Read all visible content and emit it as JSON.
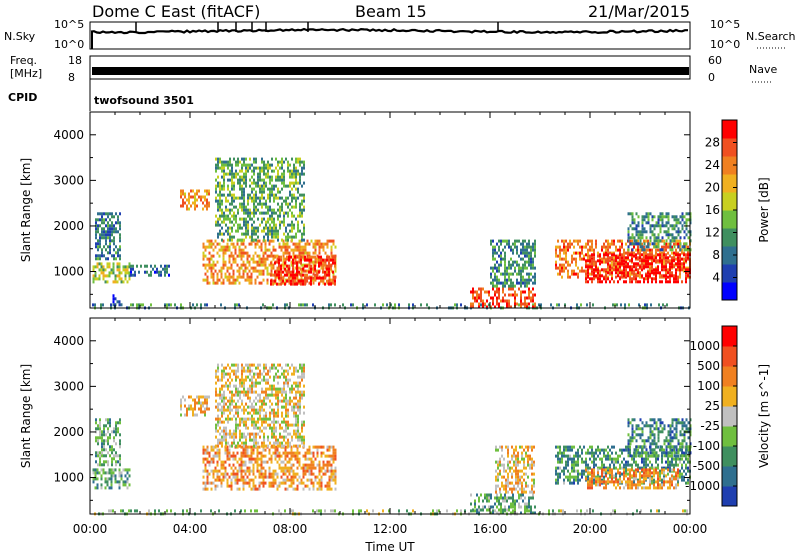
{
  "header": {
    "station": "Dome C East (fitACF)",
    "beam": "Beam 15",
    "date": "21/Mar/2015"
  },
  "nsky_panel": {
    "left_label": "N.Sky",
    "right_label": "N.Search",
    "left_tick_top": "10^5",
    "left_tick_bottom": "10^0",
    "right_tick_top": "10^5",
    "right_tick_bottom": "10^0"
  },
  "freq_panel": {
    "left_label_top": "Freq.",
    "left_label_bottom": "[MHz]",
    "left_tick_top": "18",
    "left_tick_bottom": "8",
    "right_label": "Nave",
    "right_tick_top": "60",
    "right_tick_bottom": "0",
    "cpid_label": "CPID",
    "cpid_value": "twofsound 3501"
  },
  "chart_data": [
    {
      "type": "heatmap",
      "name": "power",
      "xlabel": "",
      "ylabel": "Slant Range [km]",
      "x_ticks": [
        "00:00",
        "04:00",
        "08:00",
        "12:00",
        "16:00",
        "20:00",
        "00:00"
      ],
      "xlim_hours": [
        0,
        24
      ],
      "ylim_km": [
        200,
        4500
      ],
      "y_ticks": [
        1000,
        2000,
        3000,
        4000
      ],
      "colorbar": {
        "label": "Power [dB]",
        "range": [
          0,
          32
        ],
        "ticks": [
          4,
          8,
          12,
          16,
          20,
          24,
          28
        ],
        "colors": [
          "#0000ff",
          "#1f3fb0",
          "#2f6f8f",
          "#3f8f5f",
          "#6fbf3f",
          "#c8d020",
          "#f0b020",
          "#f08020",
          "#f05020",
          "#ff0000"
        ]
      },
      "regions": [
        {
          "t": [
            0.1,
            1.6
          ],
          "r": [
            750,
            1200
          ],
          "level": 0.5
        },
        {
          "t": [
            0.2,
            1.2
          ],
          "r": [
            1300,
            2300
          ],
          "level": 0.25
        },
        {
          "t": [
            0.9,
            1.3
          ],
          "r": [
            300,
            500
          ],
          "level": 0.15
        },
        {
          "t": [
            1.6,
            3.2
          ],
          "r": [
            950,
            1150
          ],
          "level": 0.2
        },
        {
          "t": [
            3.6,
            4.8
          ],
          "r": [
            2350,
            2800
          ],
          "level": 0.75
        },
        {
          "t": [
            4.5,
            9.8
          ],
          "r": [
            750,
            1700
          ],
          "level": 0.75
        },
        {
          "t": [
            5.0,
            8.6
          ],
          "r": [
            1700,
            3500
          ],
          "level": 0.4
        },
        {
          "t": [
            7.2,
            9.8
          ],
          "r": [
            750,
            1350
          ],
          "level": 0.95
        },
        {
          "t": [
            0.0,
            24.0
          ],
          "r": [
            200,
            300
          ],
          "level": 0.3
        },
        {
          "t": [
            15.2,
            17.8
          ],
          "r": [
            250,
            650
          ],
          "level": 0.9
        },
        {
          "t": [
            16.0,
            17.8
          ],
          "r": [
            700,
            1700
          ],
          "level": 0.3
        },
        {
          "t": [
            18.6,
            24.0
          ],
          "r": [
            900,
            1700
          ],
          "level": 0.8
        },
        {
          "t": [
            19.8,
            24.0
          ],
          "r": [
            800,
            1400
          ],
          "level": 1.0
        },
        {
          "t": [
            21.5,
            24.0
          ],
          "r": [
            1500,
            2300
          ],
          "level": 0.3
        }
      ]
    },
    {
      "type": "heatmap",
      "name": "velocity",
      "xlabel": "Time UT",
      "ylabel": "Slant Range [km]",
      "x_ticks": [
        "00:00",
        "04:00",
        "08:00",
        "12:00",
        "16:00",
        "20:00",
        "00:00"
      ],
      "xlim_hours": [
        0,
        24
      ],
      "ylim_km": [
        200,
        4500
      ],
      "y_ticks": [
        1000,
        2000,
        3000,
        4000
      ],
      "colorbar": {
        "label": "Velocity [m s^-1]",
        "ticks": [
          "1000",
          "500",
          "100",
          "25",
          "-25",
          "-100",
          "-500",
          "-1000"
        ],
        "colors": [
          "#1f3fb0",
          "#2f6f8f",
          "#3f8f5f",
          "#6fbf3f",
          "#c0c0c0",
          "#f0b020",
          "#f08020",
          "#f05020",
          "#ff0000"
        ]
      },
      "regions": [
        {
          "t": [
            0.1,
            1.6
          ],
          "r": [
            750,
            1200
          ],
          "level": 0.3
        },
        {
          "t": [
            0.2,
            1.2
          ],
          "r": [
            1300,
            2300
          ],
          "level": 0.35
        },
        {
          "t": [
            3.6,
            4.8
          ],
          "r": [
            2350,
            2800
          ],
          "level": 0.6
        },
        {
          "t": [
            4.5,
            9.8
          ],
          "r": [
            750,
            1700
          ],
          "level": 0.7
        },
        {
          "t": [
            5.0,
            8.6
          ],
          "r": [
            1700,
            3500
          ],
          "level": 0.55
        },
        {
          "t": [
            0.0,
            24.0
          ],
          "r": [
            200,
            300
          ],
          "level": 0.4
        },
        {
          "t": [
            15.2,
            17.8
          ],
          "r": [
            250,
            650
          ],
          "level": 0.3
        },
        {
          "t": [
            16.2,
            17.8
          ],
          "r": [
            700,
            1700
          ],
          "level": 0.6
        },
        {
          "t": [
            18.6,
            24.0
          ],
          "r": [
            900,
            1700
          ],
          "level": 0.25
        },
        {
          "t": [
            19.8,
            23.5
          ],
          "r": [
            800,
            1200
          ],
          "level": 0.7
        },
        {
          "t": [
            21.5,
            24.0
          ],
          "r": [
            1500,
            2300
          ],
          "level": 0.2
        }
      ]
    }
  ]
}
